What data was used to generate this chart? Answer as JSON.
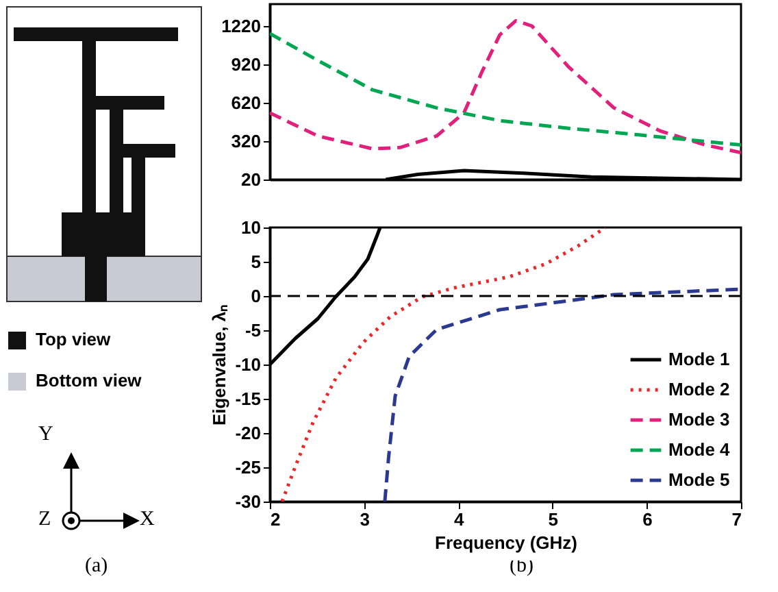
{
  "chart_data": [
    {
      "type": "other",
      "annotations": [
        "Top view",
        "Bottom view",
        "Y",
        "Z",
        "X",
        "(a)",
        "(b)"
      ]
    },
    {
      "type": "line",
      "xlim": [
        2,
        7
      ],
      "xticks": [
        2,
        3,
        4,
        5,
        6,
        7
      ],
      "ylim": [
        20,
        1390
      ],
      "yticks": [
        20,
        320,
        620,
        920,
        1220
      ],
      "tick_labels": "y",
      "grid": false,
      "legend": "bottom right",
      "series": [
        {
          "name": "Mode 1",
          "color": "#000000",
          "line_style": "solid",
          "x": [
            3.23,
            3.57,
            4.06,
            4.69,
            5.41,
            7
          ],
          "values": [
            20,
            60,
            90,
            70,
            40,
            20
          ]
        },
        {
          "name": "Mode 3",
          "color": "#e0207a",
          "line_style": "dashed",
          "x": [
            2,
            2.51,
            3.09,
            3.38,
            3.77,
            4.06,
            4.25,
            4.44,
            4.61,
            4.78,
            5.17,
            5.65,
            6.14,
            6.62,
            7
          ],
          "values": [
            540,
            360,
            260,
            270,
            360,
            540,
            860,
            1150,
            1260,
            1220,
            900,
            580,
            400,
            290,
            230
          ]
        },
        {
          "name": "Mode 4",
          "color": "#00a651",
          "line_style": "dashed",
          "x": [
            2,
            2.51,
            3.09,
            3.77,
            4.44,
            5.17,
            5.9,
            7
          ],
          "values": [
            1160,
            950,
            720,
            580,
            480,
            420,
            370,
            290
          ]
        }
      ]
    },
    {
      "type": "line",
      "xlabel": "Frequency (GHz)",
      "ylabel": "Eigenvalue, λₙ",
      "xlim": [
        2,
        7
      ],
      "xticks": [
        2,
        3,
        4,
        5,
        6,
        7
      ],
      "ylim": [
        -30,
        10
      ],
      "yticks": [
        -30,
        -25,
        -20,
        -15,
        -10,
        -5,
        0,
        5,
        10
      ],
      "grid": false,
      "legend": "bottom right",
      "ref_lines": [
        {
          "axis": "y",
          "value": 0,
          "color": "#000000",
          "line_style": "dashed"
        }
      ],
      "series": [
        {
          "name": "Mode 1",
          "color": "#000000",
          "line_style": "solid",
          "x": [
            2,
            2.27,
            2.51,
            2.7,
            2.9,
            3.04,
            3.14,
            3.17
          ],
          "values": [
            -10,
            -6.2,
            -3.3,
            -0.1,
            2.8,
            5.4,
            8.9,
            10
          ]
        },
        {
          "name": "Mode 2",
          "color": "#e8282b",
          "line_style": "dotted",
          "x": [
            2.13,
            2.27,
            2.46,
            2.7,
            2.99,
            3.28,
            3.62,
            3.96,
            4.54,
            4.93,
            5.27,
            5.56
          ],
          "values": [
            -30,
            -24.9,
            -18.4,
            -12,
            -6.8,
            -3,
            -0.1,
            1.2,
            2.8,
            4.7,
            7.3,
            10
          ]
        },
        {
          "name": "Mode 5",
          "color": "#2b3990",
          "line_style": "dashed",
          "x": [
            3.22,
            3.26,
            3.33,
            3.48,
            3.77,
            4.44,
            5.17,
            5.65,
            7
          ],
          "values": [
            -30,
            -23.6,
            -14.6,
            -8.8,
            -4.9,
            -2,
            -0.7,
            0.2,
            1
          ]
        }
      ]
    }
  ]
}
